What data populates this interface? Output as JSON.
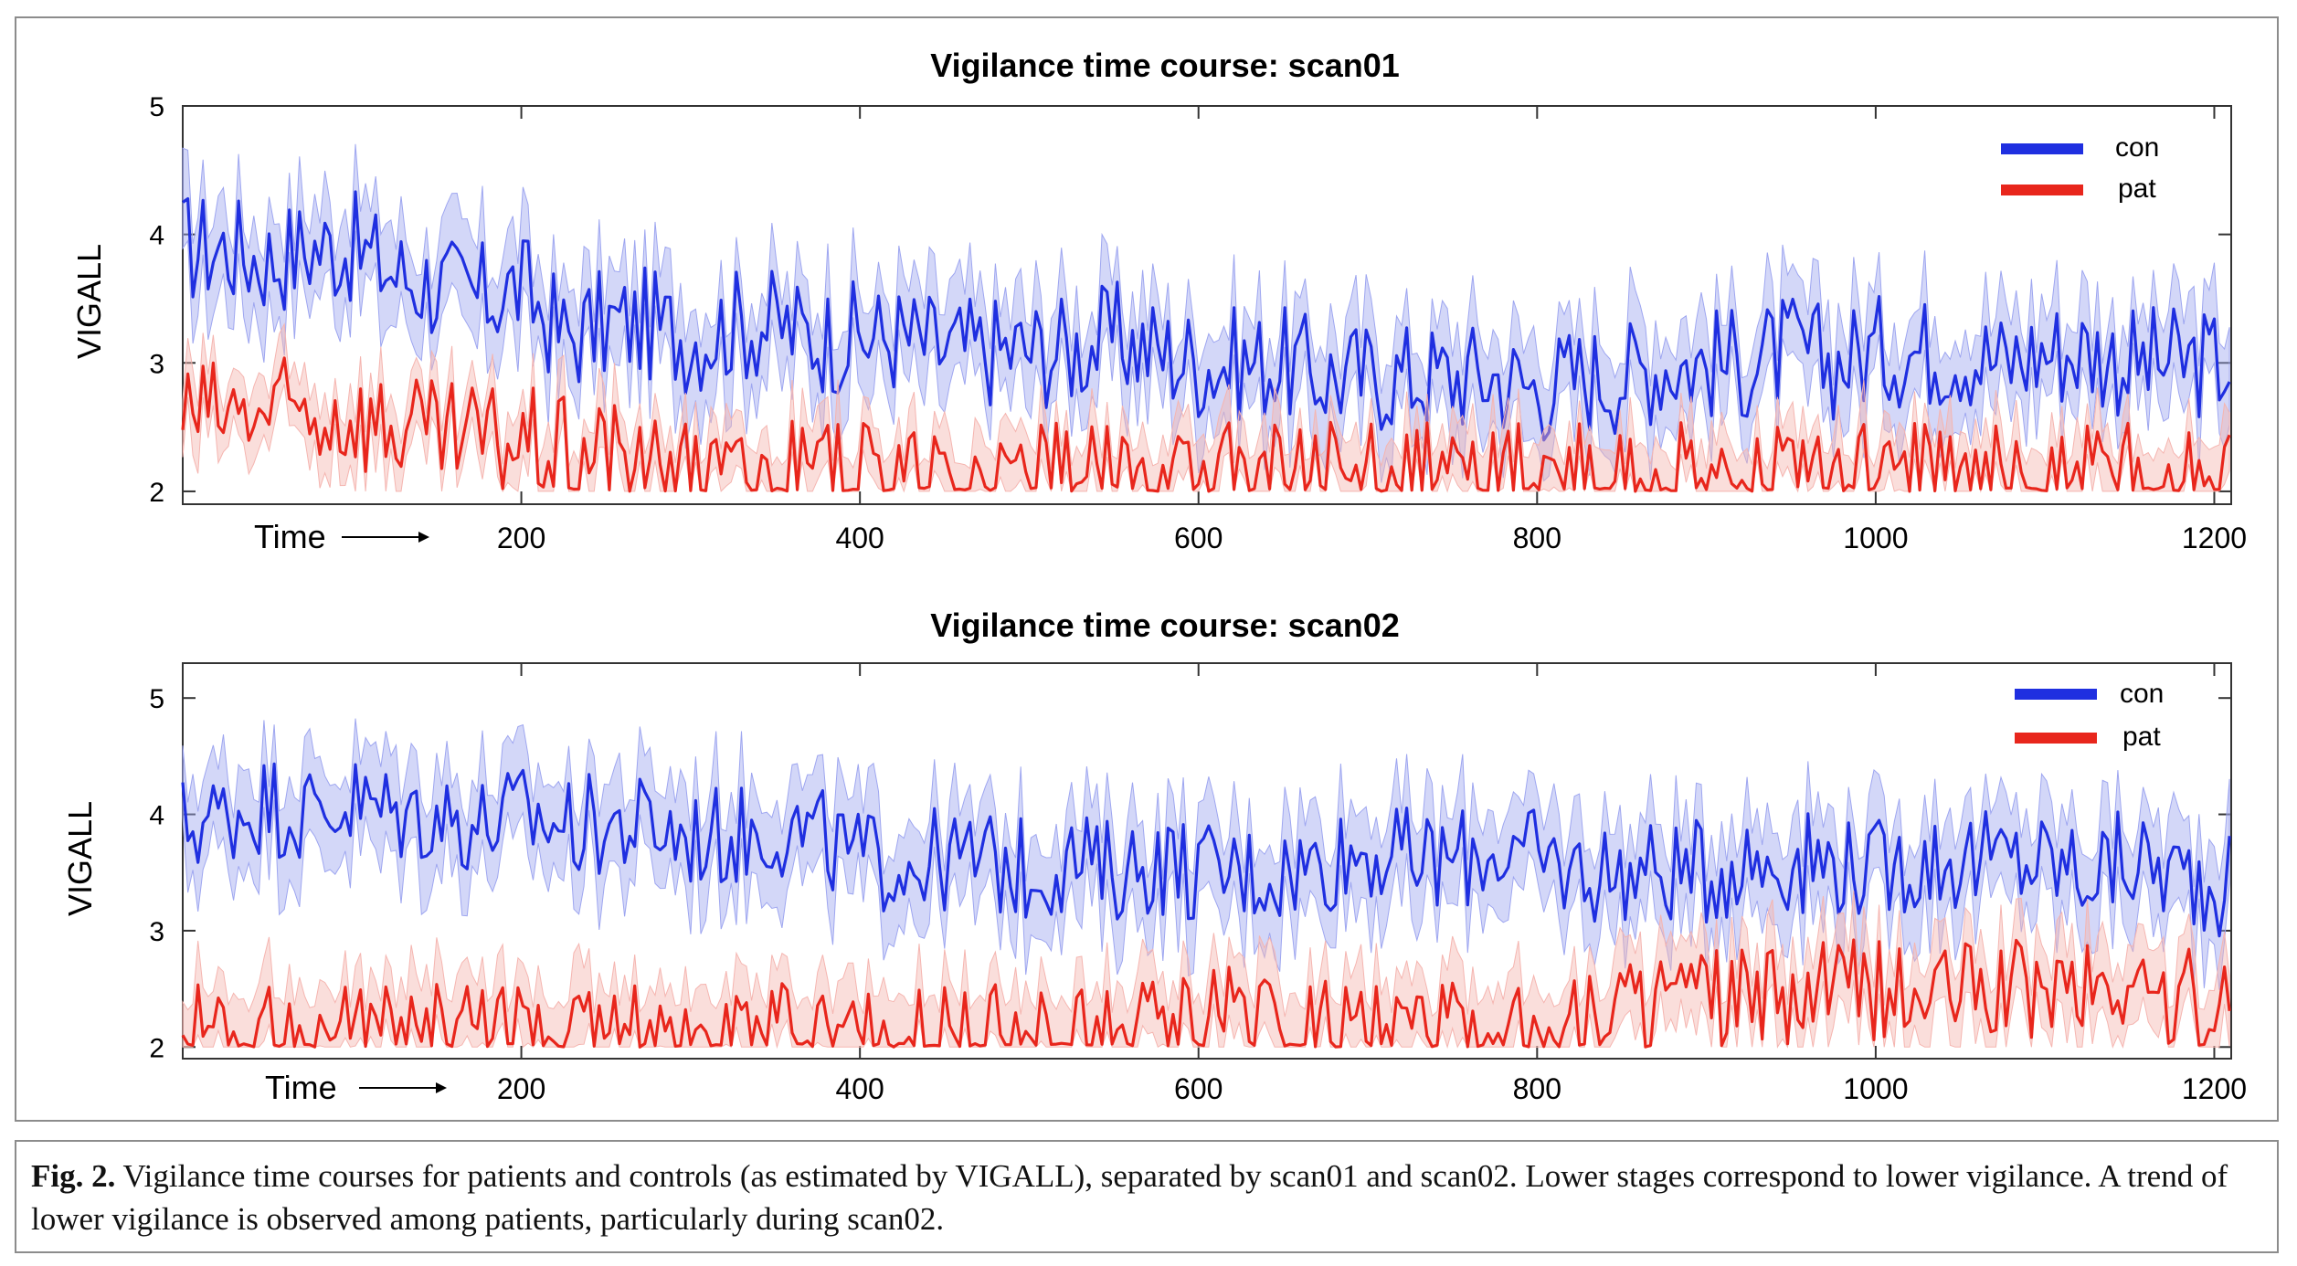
{
  "caption": {
    "label": "Fig. 2.",
    "text": "Vigilance time courses for patients and controls (as estimated by VIGALL), separated by scan01 and scan02. Lower stages correspond to lower vigilance. A trend of lower vigilance is observed among patients, particularly during scan02."
  },
  "chart_data": [
    {
      "type": "line",
      "title": "Vigilance time course: scan01",
      "xlabel": "Time",
      "ylabel": "VIGALL",
      "xlim": [
        0,
        1210
      ],
      "ylim": [
        1.9,
        5.0
      ],
      "xticks": [
        200,
        400,
        600,
        800,
        1000,
        1200
      ],
      "yticks": [
        2,
        3,
        4,
        5
      ],
      "legend": "top-right",
      "grid": false,
      "series": [
        {
          "name": "con",
          "color": "#1f2fe0",
          "band_color": "#9ea6f0",
          "x": [
            0,
            25,
            50,
            75,
            100,
            125,
            150,
            175,
            200,
            225,
            250,
            275,
            300,
            325,
            350,
            375,
            400,
            425,
            450,
            475,
            500,
            525,
            550,
            575,
            600,
            625,
            650,
            675,
            700,
            725,
            750,
            775,
            800,
            825,
            850,
            875,
            900,
            925,
            950,
            975,
            1000,
            1025,
            1050,
            1075,
            1100,
            1125,
            1150,
            1175,
            1200
          ],
          "values": [
            3.9,
            3.9,
            3.8,
            3.9,
            3.9,
            3.7,
            3.6,
            3.5,
            3.6,
            3.2,
            3.3,
            3.3,
            3.2,
            3.3,
            3.3,
            3.2,
            3.2,
            3.2,
            3.1,
            3.1,
            3.1,
            3.1,
            3.2,
            3.1,
            3.0,
            3.0,
            3.0,
            2.9,
            2.9,
            2.9,
            2.9,
            2.9,
            2.8,
            2.9,
            2.9,
            3.0,
            3.0,
            3.0,
            3.1,
            3.0,
            3.1,
            3.1,
            3.1,
            3.0,
            3.1,
            3.1,
            3.0,
            3.0,
            3.0
          ],
          "band": 0.35
        },
        {
          "name": "pat",
          "color": "#e8261c",
          "band_color": "#f5b5b0",
          "x": [
            0,
            25,
            50,
            75,
            100,
            125,
            150,
            175,
            200,
            225,
            250,
            275,
            300,
            325,
            350,
            375,
            400,
            425,
            450,
            475,
            500,
            525,
            550,
            575,
            600,
            625,
            650,
            675,
            700,
            725,
            750,
            775,
            800,
            825,
            850,
            875,
            900,
            925,
            950,
            975,
            1000,
            1025,
            1050,
            1075,
            1100,
            1125,
            1150,
            1175,
            1200
          ],
          "values": [
            2.6,
            2.6,
            2.6,
            2.6,
            2.6,
            2.5,
            2.4,
            2.4,
            2.4,
            2.3,
            2.3,
            2.2,
            2.1,
            2.1,
            2.1,
            2.1,
            2.1,
            2.1,
            2.1,
            2.1,
            2.1,
            2.1,
            2.1,
            2.1,
            2.1,
            2.1,
            2.1,
            2.1,
            2.1,
            2.1,
            2.1,
            2.1,
            2.1,
            2.1,
            2.1,
            2.1,
            2.1,
            2.1,
            2.1,
            2.1,
            2.1,
            2.1,
            2.1,
            2.1,
            2.1,
            2.1,
            2.1,
            2.1,
            2.1
          ],
          "band": 0.25
        }
      ]
    },
    {
      "type": "line",
      "title": "Vigilance time course: scan02",
      "xlabel": "Time",
      "ylabel": "VIGALL",
      "xlim": [
        0,
        1210
      ],
      "ylim": [
        1.9,
        5.3
      ],
      "xticks": [
        200,
        400,
        600,
        800,
        1000,
        1200
      ],
      "yticks": [
        2,
        3,
        4,
        5
      ],
      "legend": "top-right",
      "grid": false,
      "series": [
        {
          "name": "con",
          "color": "#1f2fe0",
          "band_color": "#9ea6f0",
          "x": [
            0,
            25,
            50,
            75,
            100,
            125,
            150,
            175,
            200,
            225,
            250,
            275,
            300,
            325,
            350,
            375,
            400,
            425,
            450,
            475,
            500,
            525,
            550,
            575,
            600,
            625,
            650,
            675,
            700,
            725,
            750,
            775,
            800,
            825,
            850,
            875,
            900,
            925,
            950,
            975,
            1000,
            1025,
            1050,
            1075,
            1100,
            1125,
            1150,
            1175,
            1200
          ],
          "values": [
            3.9,
            4.0,
            4.1,
            4.0,
            4.1,
            4.0,
            4.0,
            3.9,
            4.0,
            3.9,
            3.9,
            3.9,
            3.8,
            3.8,
            3.9,
            3.8,
            3.6,
            3.6,
            3.6,
            3.6,
            3.5,
            3.6,
            3.5,
            3.6,
            3.5,
            3.5,
            3.5,
            3.6,
            3.7,
            3.6,
            3.6,
            3.7,
            3.6,
            3.5,
            3.5,
            3.5,
            3.5,
            3.6,
            3.6,
            3.6,
            3.5,
            3.6,
            3.6,
            3.6,
            3.6,
            3.5,
            3.6,
            3.5,
            3.4
          ],
          "band": 0.4
        },
        {
          "name": "pat",
          "color": "#e8261c",
          "band_color": "#f5b5b0",
          "x": [
            0,
            25,
            50,
            75,
            100,
            125,
            150,
            175,
            200,
            225,
            250,
            275,
            300,
            325,
            350,
            375,
            400,
            425,
            450,
            475,
            500,
            525,
            550,
            575,
            600,
            625,
            650,
            675,
            700,
            725,
            750,
            775,
            800,
            825,
            850,
            875,
            900,
            925,
            950,
            975,
            1000,
            1025,
            1050,
            1075,
            1100,
            1125,
            1150,
            1175,
            1200
          ],
          "values": [
            2.2,
            2.2,
            2.1,
            2.1,
            2.1,
            2.1,
            2.1,
            2.1,
            2.1,
            2.1,
            2.1,
            2.1,
            2.1,
            2.1,
            2.1,
            2.1,
            2.1,
            2.1,
            2.1,
            2.1,
            2.1,
            2.1,
            2.1,
            2.2,
            2.3,
            2.3,
            2.2,
            2.2,
            2.1,
            2.1,
            2.1,
            2.1,
            2.1,
            2.3,
            2.4,
            2.4,
            2.4,
            2.4,
            2.4,
            2.5,
            2.5,
            2.4,
            2.5,
            2.5,
            2.5,
            2.5,
            2.5,
            2.4,
            2.4
          ],
          "band": 0.35
        }
      ]
    }
  ]
}
